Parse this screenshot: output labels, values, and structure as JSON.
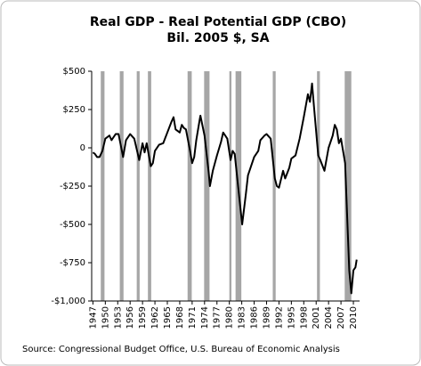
{
  "chart_data": {
    "type": "line",
    "title": "Real GDP - Real Potential  GDP (CBO)",
    "subtitle": "Bil. 2005  $, SA",
    "source": "Source: Congressional Budget Office, U.S. Bureau of Economic Analysis",
    "x": [
      1947,
      1947.5,
      1948,
      1948.6,
      1949.3,
      1950,
      1951,
      1951.5,
      1952.5,
      1953.2,
      1954.3,
      1955,
      1956,
      1957,
      1958.2,
      1959,
      1959.5,
      1960,
      1961,
      1961.5,
      1962,
      1963,
      1964,
      1965,
      1966,
      1966.5,
      1967,
      1968,
      1968.5,
      1969,
      1969.5,
      1970.5,
      1971,
      1971.5,
      1972,
      1972.8,
      1973,
      1974,
      1975,
      1975.3,
      1976,
      1977,
      1978,
      1978.5,
      1979,
      1979.5,
      1980.3,
      1980.8,
      1981.3,
      1982.5,
      1982.9,
      1983.1,
      1984,
      1984.5,
      1985,
      1986,
      1987,
      1987.5,
      1988.5,
      1989,
      1990,
      1991,
      1991.5,
      1992,
      1993,
      1993.5,
      1994.5,
      1995,
      1996,
      1997,
      1998,
      1999,
      1999.5,
      2000,
      2000.5,
      2001.5,
      2002,
      2003,
      2004,
      2005,
      2005.5,
      2006,
      2006.5,
      2007,
      2008,
      2009,
      2009.5,
      2010,
      2010.5,
      2010.8
    ],
    "series": [
      {
        "color": "#000000",
        "values": [
          -30,
          -40,
          -60,
          -60,
          -20,
          60,
          80,
          50,
          90,
          90,
          -60,
          50,
          90,
          60,
          -80,
          30,
          -30,
          30,
          -120,
          -100,
          -20,
          20,
          30,
          100,
          170,
          200,
          120,
          100,
          150,
          130,
          120,
          -20,
          -100,
          -60,
          50,
          180,
          210,
          80,
          -160,
          -250,
          -150,
          -50,
          40,
          100,
          80,
          60,
          -80,
          -20,
          -40,
          -350,
          -450,
          -500,
          -300,
          -180,
          -140,
          -60,
          -20,
          50,
          80,
          90,
          60,
          -200,
          -250,
          -260,
          -150,
          -200,
          -130,
          -70,
          -50,
          60,
          200,
          350,
          300,
          420,
          260,
          -50,
          -80,
          -150,
          0,
          80,
          150,
          120,
          30,
          60,
          -100,
          -800,
          -950,
          -800,
          -780,
          -730
        ]
      }
    ],
    "shaded_periods": [
      [
        1948.9,
        1949.8
      ],
      [
        1953.5,
        1954.4
      ],
      [
        1957.6,
        1958.3
      ],
      [
        1960.3,
        1961.1
      ],
      [
        1969.9,
        1970.9
      ],
      [
        1973.9,
        1975.2
      ],
      [
        1980,
        1980.5
      ],
      [
        1981.5,
        1982.9
      ],
      [
        1990.5,
        1991.2
      ],
      [
        2001.2,
        2001.9
      ],
      [
        2007.9,
        2009.5
      ]
    ],
    "shade_color": "#a6a6a6",
    "xlim": [
      1946.7,
      2011.5
    ],
    "xticks": [
      1947,
      1950,
      1953,
      1956,
      1959,
      1962,
      1965,
      1968,
      1971,
      1974,
      1977,
      1980,
      1983,
      1986,
      1989,
      1992,
      1995,
      1998,
      2001,
      2004,
      2007,
      2010
    ],
    "ylim": [
      -1000,
      500
    ],
    "yticks": [
      {
        "value": 500,
        "label": "$500"
      },
      {
        "value": 250,
        "label": "$250"
      },
      0,
      {
        "value": -250,
        "label": "-$250"
      },
      {
        "value": -500,
        "label": "-$500"
      },
      {
        "value": -750,
        "label": "-$750"
      },
      {
        "value": -1000,
        "label": "-$1,000"
      }
    ]
  }
}
